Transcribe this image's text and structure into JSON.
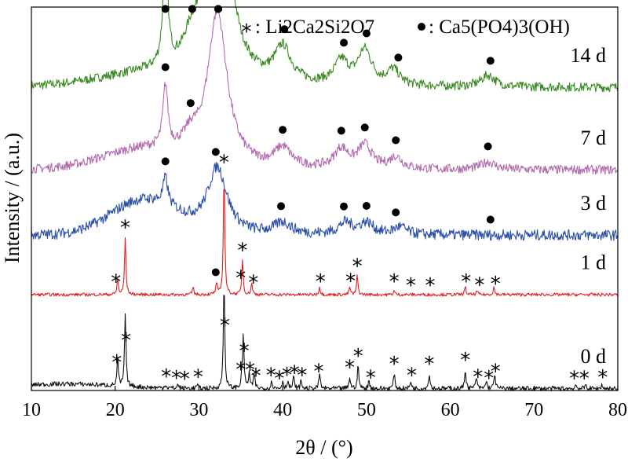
{
  "chart_data": {
    "type": "line",
    "xlabel": "2θ / (°)",
    "ylabel": "Intensity / (a.u.)",
    "xlim": [
      10,
      80
    ],
    "x_ticks": [
      "10",
      "20",
      "30",
      "40",
      "50",
      "60",
      "70",
      "80"
    ],
    "grid": false,
    "legend": {
      "placement": "top-right",
      "star_marker": "*",
      "star_label": ": Li2Ca2Si2O7",
      "dot_label": ": Ca5(PO4)3(OH)"
    },
    "series": [
      {
        "name": "14 d",
        "color": "#3a8a22",
        "baseline": 0.79,
        "noise": 0.012,
        "humps": [
          [
            24,
            6,
            0.03
          ]
        ],
        "peaks": [
          [
            26.0,
            0.35,
            0.28
          ],
          [
            29.0,
            1.0,
            0.05
          ],
          [
            32.2,
            1.4,
            0.7
          ],
          [
            40.0,
            1.2,
            0.09
          ],
          [
            47.0,
            1.0,
            0.06
          ],
          [
            49.8,
            1.0,
            0.09
          ],
          [
            53.2,
            0.9,
            0.04
          ],
          [
            64.5,
            1.0,
            0.03
          ]
        ],
        "dots": [
          26.0,
          29.2,
          32.3,
          40.2,
          47.3,
          50.0,
          53.8,
          64.8
        ],
        "stars": []
      },
      {
        "name": "7 d",
        "color": "#b26aae",
        "baseline": 0.575,
        "noise": 0.012,
        "humps": [
          [
            23.5,
            5,
            0.05
          ]
        ],
        "peaks": [
          [
            26.0,
            0.35,
            0.16
          ],
          [
            29.0,
            1.0,
            0.04
          ],
          [
            32.2,
            1.4,
            0.4
          ],
          [
            40.0,
            1.2,
            0.05
          ],
          [
            47.0,
            1.0,
            0.05
          ],
          [
            49.8,
            1.0,
            0.06
          ],
          [
            53.5,
            0.9,
            0.03
          ],
          [
            64.5,
            1.0,
            0.02
          ]
        ],
        "dots": [
          26.0,
          29.0,
          32.3,
          40.0,
          47.0,
          49.8,
          53.5,
          64.5
        ],
        "stars": []
      },
      {
        "name": "3 d",
        "color": "#2b4fa8",
        "baseline": 0.405,
        "noise": 0.014,
        "humps": [
          [
            23.5,
            4,
            0.09
          ]
        ],
        "peaks": [
          [
            26.0,
            0.35,
            0.07
          ],
          [
            32.2,
            1.4,
            0.17
          ],
          [
            40.0,
            1.2,
            0.03
          ],
          [
            47.5,
            1.0,
            0.03
          ],
          [
            50.0,
            1.0,
            0.03
          ],
          [
            54.0,
            0.9,
            0.02
          ]
        ],
        "dots": [
          26.0,
          32.0,
          39.8,
          47.3,
          50.0,
          53.5,
          64.8
        ],
        "stars": []
      },
      {
        "name": "1 d",
        "color": "#e02020",
        "baseline": 0.25,
        "noise": 0.004,
        "humps": [],
        "peaks": [
          [
            20.3,
            0.1,
            0.04
          ],
          [
            21.2,
            0.1,
            0.15
          ],
          [
            29.3,
            0.1,
            0.02
          ],
          [
            32.1,
            0.1,
            0.03
          ],
          [
            33.0,
            0.1,
            0.32
          ],
          [
            35.2,
            0.1,
            0.09
          ],
          [
            36.3,
            0.1,
            0.03
          ],
          [
            44.4,
            0.1,
            0.02
          ],
          [
            48.0,
            0.1,
            0.02
          ],
          [
            48.9,
            0.1,
            0.05
          ],
          [
            53.3,
            0.1,
            0.01
          ],
          [
            61.8,
            0.1,
            0.02
          ],
          [
            63.2,
            0.1,
            0.01
          ],
          [
            65.2,
            0.1,
            0.02
          ]
        ],
        "dots": [
          32.0
        ],
        "stars": [
          20.1,
          21.2,
          33.0,
          35.0,
          35.2,
          36.5,
          44.5,
          48.1,
          48.9,
          53.3,
          55.3,
          57.6,
          61.9,
          63.5,
          65.4
        ]
      },
      {
        "name": "0 d",
        "color": "#111111",
        "baseline": 0.005,
        "noise": 0.006,
        "humps": [
          [
            14,
            6,
            0.012
          ]
        ],
        "peaks": [
          [
            20.3,
            0.1,
            0.07
          ],
          [
            21.2,
            0.1,
            0.19
          ],
          [
            26.0,
            0.1,
            0.01
          ],
          [
            27.5,
            0.1,
            0.01
          ],
          [
            29.8,
            0.1,
            0.01
          ],
          [
            33.0,
            0.1,
            0.28
          ],
          [
            35.1,
            0.1,
            0.02
          ],
          [
            35.3,
            0.1,
            0.14
          ],
          [
            36.0,
            0.1,
            0.04
          ],
          [
            36.6,
            0.1,
            0.04
          ],
          [
            38.7,
            0.1,
            0.02
          ],
          [
            40.0,
            0.1,
            0.02
          ],
          [
            40.6,
            0.1,
            0.02
          ],
          [
            41.3,
            0.1,
            0.03
          ],
          [
            42.2,
            0.1,
            0.02
          ],
          [
            44.4,
            0.1,
            0.04
          ],
          [
            48.0,
            0.1,
            0.03
          ],
          [
            49.0,
            0.1,
            0.06
          ],
          [
            50.3,
            0.1,
            0.02
          ],
          [
            53.3,
            0.1,
            0.04
          ],
          [
            55.3,
            0.1,
            0.02
          ],
          [
            57.5,
            0.1,
            0.04
          ],
          [
            61.8,
            0.1,
            0.05
          ],
          [
            63.1,
            0.1,
            0.03
          ],
          [
            64.3,
            0.1,
            0.02
          ],
          [
            65.3,
            0.1,
            0.04
          ],
          [
            75.0,
            0.1,
            0.01
          ],
          [
            76.2,
            0.1,
            0.01
          ],
          [
            78.1,
            0.1,
            0.01
          ]
        ],
        "dots": [],
        "stars": [
          20.2,
          21.3,
          26.1,
          27.3,
          28.3,
          29.9,
          33.1,
          35.0,
          35.4,
          36.1,
          36.8,
          38.6,
          39.6,
          40.5,
          41.4,
          42.3,
          44.3,
          48.0,
          49.0,
          50.5,
          53.3,
          55.4,
          57.5,
          61.8,
          63.3,
          64.6,
          65.4,
          74.8,
          76.0,
          78.2
        ]
      }
    ]
  }
}
